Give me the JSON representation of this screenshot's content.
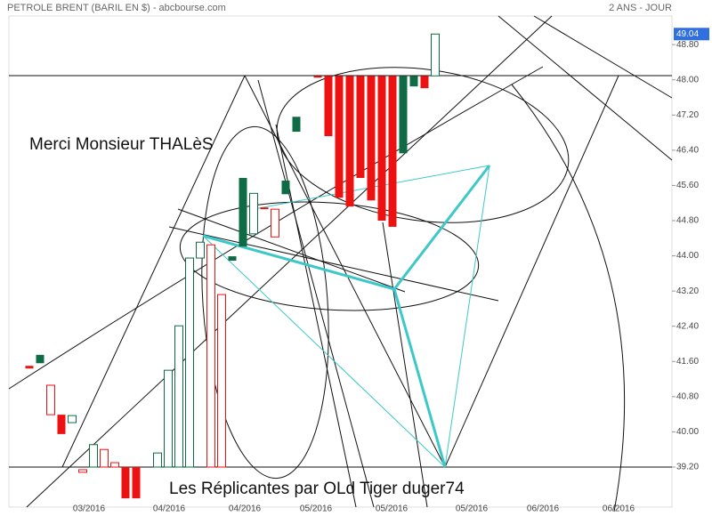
{
  "chart_data": {
    "type": "candlestick",
    "title": "PETROLE BRENT (BARIL EN $) - abcbourse.com",
    "period": "2 ANS - JOUR",
    "annotations": [
      "Merci Monsieur THALèS",
      "Les Réplicantes par OLd Tiger duger74"
    ],
    "x_labels": [
      "03/2016",
      "04/2016",
      "04/2016",
      "05/2016",
      "05/2016",
      "05/2016",
      "06/2016",
      "06/2016"
    ],
    "open": [
      41.5,
      41.56,
      41.06,
      40.39,
      40.21,
      39.14,
      39.2,
      39.6,
      39.3,
      39.2,
      39.2,
      null,
      39.2,
      39.2,
      39.2,
      39.2,
      43.95,
      44.25,
      43.12,
      43.89,
      44.21,
      44.5,
      45.1,
      45.06,
      45.4,
      46.82,
      null,
      48.09,
      48.09,
      48.09,
      48.09,
      48.09,
      48.09,
      48.09,
      48.09,
      46.33,
      47.85,
      48.09,
      48.09
    ],
    "close": [
      41.44,
      41.75,
      40.39,
      39.95,
      40.37,
      39.08,
      39.71,
      39.2,
      39.2,
      38.49,
      38.49,
      null,
      39.52,
      41.4,
      42.41,
      43.95,
      44.31,
      39.2,
      39.2,
      43.99,
      45.77,
      45.42,
      45.06,
      44.43,
      45.71,
      47.16,
      null,
      48.05,
      46.72,
      45.32,
      45.12,
      45.77,
      45.26,
      44.8,
      44.66,
      48.09,
      48.09,
      47.81,
      49.04
    ],
    "hollow": [
      false,
      false,
      true,
      false,
      true,
      true,
      true,
      true,
      true,
      false,
      false,
      null,
      true,
      true,
      true,
      true,
      true,
      true,
      true,
      false,
      false,
      true,
      false,
      true,
      false,
      false,
      null,
      false,
      false,
      false,
      false,
      false,
      false,
      false,
      false,
      false,
      false,
      false,
      true
    ],
    "up_color": "#0e6b45",
    "down_color": "#ee1111",
    "last_price": 49.04,
    "last_price_color": "#2f6fe0",
    "ylim": [
      38.29,
      49.45
    ],
    "yticks": [
      {
        "value": 39.2,
        "label": "39.20"
      },
      {
        "value": 40.0,
        "label": "40.00"
      },
      {
        "value": 40.8,
        "label": "40.80"
      },
      {
        "value": 41.6,
        "label": "41.60"
      },
      {
        "value": 42.4,
        "label": "42.40"
      },
      {
        "value": 43.2,
        "label": "43.20"
      },
      {
        "value": 44.0,
        "label": "44.00"
      },
      {
        "value": 44.8,
        "label": "44.80"
      },
      {
        "value": 45.6,
        "label": "45.60"
      },
      {
        "value": 46.4,
        "label": "46.40"
      },
      {
        "value": 47.2,
        "label": "47.20"
      },
      {
        "value": 48.0,
        "label": "48.00"
      },
      {
        "value": 48.8,
        "label": "48.80"
      }
    ]
  }
}
